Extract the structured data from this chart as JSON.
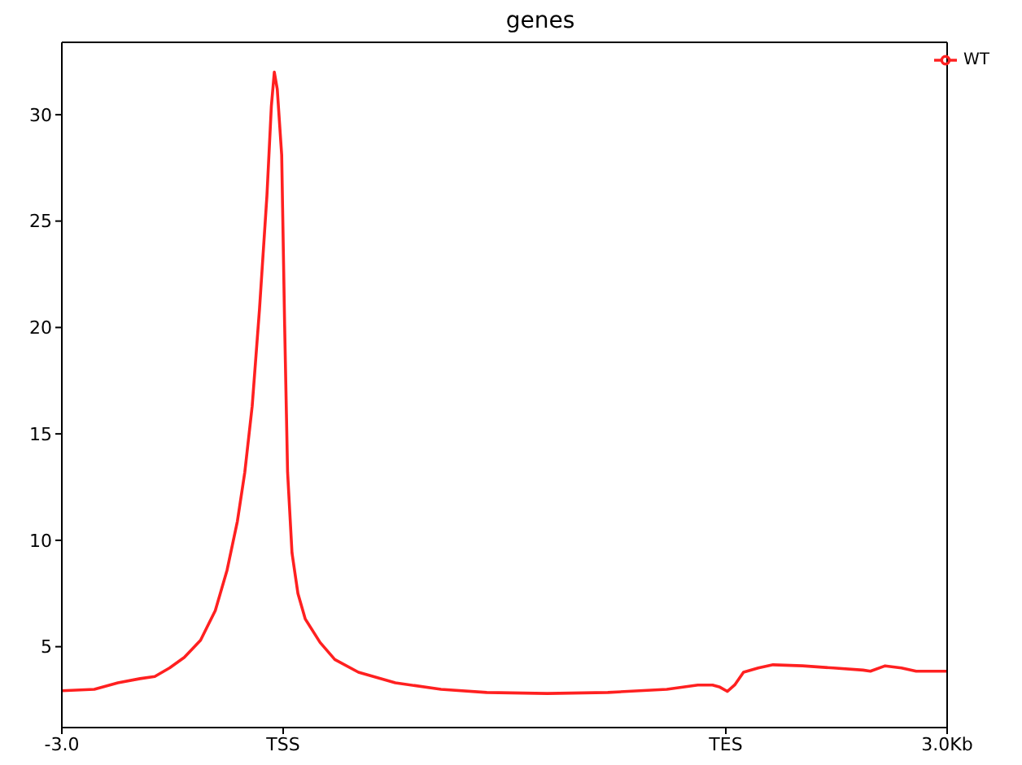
{
  "chart_data": {
    "type": "line",
    "title": "genes",
    "x": [
      -3,
      -2.78,
      -2.62,
      -2.47,
      -2.37,
      -2.27,
      -2.17,
      -2.06,
      -1.96,
      -1.88,
      -1.81,
      -1.76,
      -1.71,
      -1.66,
      -1.61,
      -1.58,
      -1.56,
      -1.54,
      -1.51,
      -1.49,
      -1.47,
      -1.44,
      -1.4,
      -1.35,
      -1.25,
      -1.15,
      -0.99,
      -0.74,
      -0.43,
      -0.12,
      0.29,
      0.7,
      1.1,
      1.31,
      1.41,
      1.46,
      1.51,
      1.56,
      1.62,
      1.72,
      1.82,
      2.02,
      2.23,
      2.43,
      2.48,
      2.58,
      2.69,
      2.79,
      3
    ],
    "series": [
      {
        "name": "WT",
        "color": "#ff2020",
        "values": [
          2.93,
          3.0,
          3.3,
          3.5,
          3.6,
          4.0,
          4.5,
          5.3,
          6.7,
          8.6,
          10.9,
          13.2,
          16.3,
          20.9,
          26.2,
          30.4,
          32.0,
          31.2,
          28.1,
          20.1,
          13.2,
          9.4,
          7.5,
          6.3,
          5.2,
          4.4,
          3.8,
          3.3,
          3.0,
          2.85,
          2.8,
          2.85,
          3.0,
          3.2,
          3.2,
          3.1,
          2.9,
          3.2,
          3.8,
          4.0,
          4.15,
          4.1,
          4.0,
          3.9,
          3.85,
          4.1,
          4.0,
          3.85,
          3.85
        ]
      }
    ],
    "xlim": [
      -3,
      3
    ],
    "xticks": [
      {
        "value": -3,
        "label": "-3.0"
      },
      {
        "value": -1.5,
        "label": "TSS"
      },
      {
        "value": 1.5,
        "label": "TES"
      },
      {
        "value": 3,
        "label": "3.0Kb"
      }
    ],
    "ylim": [
      1.2,
      33.4
    ],
    "yticks": [
      5,
      10,
      15,
      20,
      25,
      30
    ],
    "grid": false,
    "legend": "top right",
    "marker": "none",
    "line_style": "solid"
  }
}
